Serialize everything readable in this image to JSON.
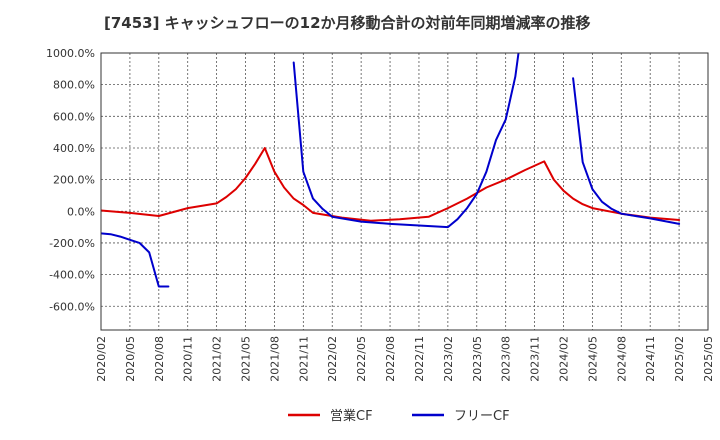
{
  "chart_data": {
    "type": "line",
    "title": "[7453]  キャッシュフローの12か月移動合計の対前年同期増減率の推移",
    "ylim": [
      -750,
      1000
    ],
    "yticks": [
      1000,
      800,
      600,
      400,
      200,
      0,
      -200,
      -400,
      -600
    ],
    "ytick_labels": [
      "1000.0%",
      "800.0%",
      "600.0%",
      "400.0%",
      "200.0%",
      "0.0%",
      "-200.0%",
      "-400.0%",
      "-600.0%"
    ],
    "xticks": [
      "2020/02",
      "2020/05",
      "2020/08",
      "2020/11",
      "2021/02",
      "2021/05",
      "2021/08",
      "2021/11",
      "2022/02",
      "2022/05",
      "2022/08",
      "2022/11",
      "2023/02",
      "2023/05",
      "2023/08",
      "2023/11",
      "2024/02",
      "2024/05",
      "2024/08",
      "2024/11",
      "2025/02",
      "2025/05"
    ],
    "grid": true,
    "legend_position": "bottom-center",
    "series": [
      {
        "name": "営業CF",
        "color": "#dd0000",
        "points": [
          [
            0,
            5
          ],
          [
            3,
            -10
          ],
          [
            6,
            -30
          ],
          [
            9,
            20
          ],
          [
            12,
            50
          ],
          [
            13,
            90
          ],
          [
            14,
            140
          ],
          [
            15,
            210
          ],
          [
            16,
            300
          ],
          [
            17,
            400
          ],
          [
            18,
            250
          ],
          [
            19,
            150
          ],
          [
            20,
            80
          ],
          [
            21,
            40
          ],
          [
            22,
            -10
          ],
          [
            25,
            -40
          ],
          [
            28,
            -60
          ],
          [
            31,
            -50
          ],
          [
            34,
            -35
          ],
          [
            36,
            20
          ],
          [
            38,
            80
          ],
          [
            40,
            150
          ],
          [
            42,
            200
          ],
          [
            44,
            260
          ],
          [
            46,
            315
          ],
          [
            47,
            200
          ],
          [
            48,
            130
          ],
          [
            49,
            80
          ],
          [
            50,
            45
          ],
          [
            51,
            20
          ],
          [
            54,
            -15
          ],
          [
            57,
            -40
          ],
          [
            60,
            -55
          ]
        ]
      },
      {
        "name": "フリーCF",
        "color": "#0000cc",
        "points": [
          [
            0,
            -140
          ],
          [
            1,
            -145
          ],
          [
            2,
            -160
          ],
          [
            3,
            -180
          ],
          [
            4,
            -200
          ],
          [
            5,
            -260
          ],
          [
            6,
            -475
          ],
          [
            7,
            -475
          ],
          null,
          [
            20,
            940
          ],
          [
            21,
            250
          ],
          [
            22,
            80
          ],
          [
            23,
            15
          ],
          [
            24,
            -35
          ],
          [
            27,
            -65
          ],
          [
            30,
            -80
          ],
          [
            33,
            -90
          ],
          [
            36,
            -100
          ],
          [
            37,
            -50
          ],
          [
            38,
            20
          ],
          [
            39,
            110
          ],
          [
            40,
            250
          ],
          [
            41,
            450
          ],
          [
            42,
            580
          ],
          [
            43,
            850
          ],
          [
            44,
            1300
          ],
          null,
          [
            49,
            840
          ],
          [
            50,
            310
          ],
          [
            51,
            140
          ],
          [
            52,
            60
          ],
          [
            53,
            15
          ],
          [
            54,
            -15
          ],
          [
            57,
            -45
          ],
          [
            60,
            -80
          ]
        ]
      }
    ]
  }
}
